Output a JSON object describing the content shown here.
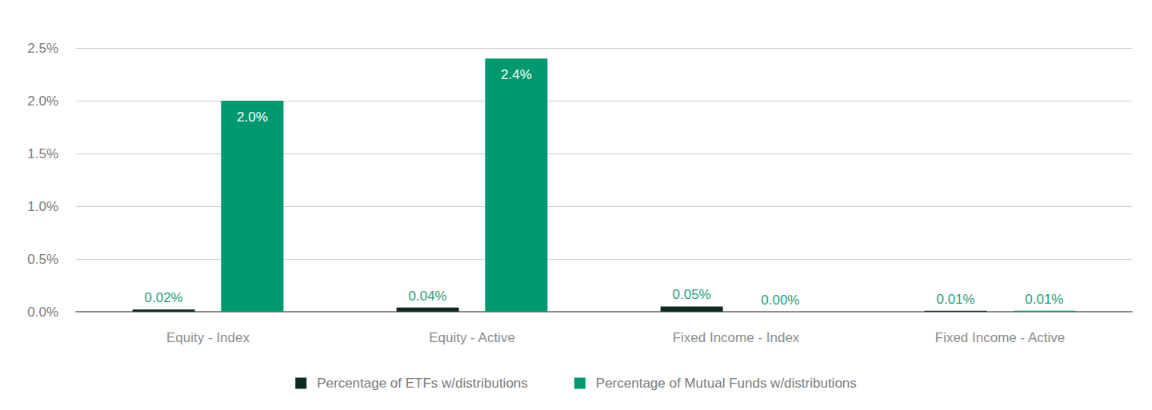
{
  "chart_data": {
    "type": "bar",
    "categories": [
      "Equity - Index",
      "Equity - Active",
      "Fixed Income - Index",
      "Fixed Income - Active"
    ],
    "series": [
      {
        "name": "Percentage of ETFs w/distributions",
        "color": "#0d2b20",
        "values": [
          0.02,
          0.04,
          0.05,
          0.01
        ],
        "value_labels": [
          "0.02%",
          "0.04%",
          "0.05%",
          "0.01%"
        ]
      },
      {
        "name": "Percentage of Mutual Funds w/distributions",
        "color": "#00996f",
        "values": [
          2.0,
          2.4,
          0.0,
          0.01
        ],
        "value_labels": [
          "2.0%",
          "2.4%",
          "0.00%",
          "0.01%"
        ]
      }
    ],
    "ylim": [
      0,
      2.5
    ],
    "yticks": [
      {
        "value": 0,
        "label": "0.0%"
      },
      {
        "value": 0.5,
        "label": "0.5%"
      },
      {
        "value": 1.0,
        "label": "1.0%"
      },
      {
        "value": 1.5,
        "label": "1.5%"
      },
      {
        "value": 2.0,
        "label": "2.0%"
      },
      {
        "value": 2.5,
        "label": "2.5%"
      }
    ],
    "grid": true,
    "legend": "bottom",
    "data_labels": true
  }
}
